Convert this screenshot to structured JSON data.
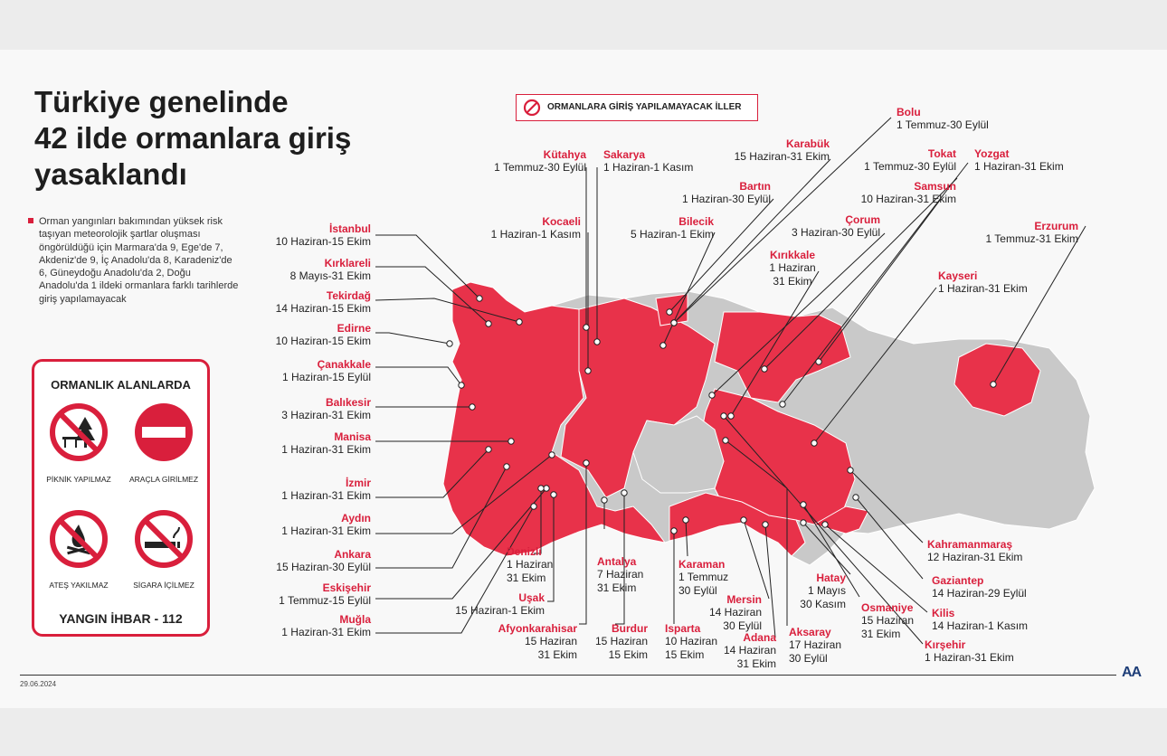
{
  "title_lines": [
    "Türkiye genelinde",
    "42 ilde ormanlara giriş",
    "yasaklandı"
  ],
  "description": "Orman yangınları bakımından yüksek risk taşıyan meteorolojik şartlar oluşması öngörüldüğü için Marmara'da 9, Ege'de 7, Akdeniz'de 9, İç Anadolu'da 8, Karadeniz'de 6, Güneydoğu Anadolu'da 2, Doğu Anadolu'da 1 ildeki ormanlara farklı tarihlerde giriş yapılamayacak",
  "rules": {
    "title": "ORMANLIK ALANLARDA",
    "items": [
      "PİKNİK YAPILMAZ",
      "ARAÇLA GİRİLMEZ",
      "ATEŞ YAKILMAZ",
      "SİGARA İÇİLMEZ"
    ],
    "hotline": "YANGIN İHBAR - 112"
  },
  "legend": {
    "label": "ORMANLARA GİRİŞ YAPILAMAYACAK İLLER",
    "icon": "no-entry-icon"
  },
  "colors": {
    "accent": "#d91f3c",
    "map_banned": "#e8324a",
    "map_other": "#c8c8c8"
  },
  "provinces": {
    "istanbul": {
      "name": "İstanbul",
      "dates": "10 Haziran-15 Ekim"
    },
    "kirklareli": {
      "name": "Kırklareli",
      "dates": "8 Mayıs-31 Ekim"
    },
    "tekirdag": {
      "name": "Tekirdağ",
      "dates": "14 Haziran-15 Ekim"
    },
    "edirne": {
      "name": "Edirne",
      "dates": "10 Haziran-15 Ekim"
    },
    "canakkale": {
      "name": "Çanakkale",
      "dates": "1 Haziran-15 Eylül"
    },
    "balikesir": {
      "name": "Balıkesir",
      "dates": "3 Haziran-31 Ekim"
    },
    "manisa": {
      "name": "Manisa",
      "dates": "1 Haziran-31 Ekim"
    },
    "izmir": {
      "name": "İzmir",
      "dates": "1 Haziran-31 Ekim"
    },
    "aydin": {
      "name": "Aydın",
      "dates": "1 Haziran-31 Ekim"
    },
    "ankara": {
      "name": "Ankara",
      "dates": "15 Haziran-30 Eylül"
    },
    "eskisehir": {
      "name": "Eskişehir",
      "dates": "1 Temmuz-15 Eylül"
    },
    "mugla": {
      "name": "Muğla",
      "dates": "1 Haziran-31 Ekim"
    },
    "kutahya": {
      "name": "Kütahya",
      "dates": "1 Temmuz-30 Eylül"
    },
    "sakarya": {
      "name": "Sakarya",
      "dates": "1 Haziran-1 Kasım"
    },
    "kocaeli": {
      "name": "Kocaeli",
      "dates": "1 Haziran-1 Kasım"
    },
    "bilecik": {
      "name": "Bilecik",
      "dates": "5 Haziran-1 Ekim"
    },
    "karabuk": {
      "name": "Karabük",
      "dates": "15 Haziran-31 Ekim"
    },
    "bartin": {
      "name": "Bartın",
      "dates": "1 Haziran-30 Eylül"
    },
    "bolu": {
      "name": "Bolu",
      "dates": "1 Temmuz-30 Eylül"
    },
    "tokat": {
      "name": "Tokat",
      "dates": "1 Temmuz-30 Eylül"
    },
    "yozgat": {
      "name": "Yozgat",
      "dates": "1 Haziran-31 Ekim"
    },
    "samsun": {
      "name": "Samsun",
      "dates": "10 Haziran-31 Ekim"
    },
    "corum": {
      "name": "Çorum",
      "dates": "3 Haziran-30 Eylül"
    },
    "kirikkale": {
      "name": "Kırıkkale",
      "dates": "1 Haziran\n31 Ekim"
    },
    "kayseri": {
      "name": "Kayseri",
      "dates": "1 Haziran-31 Ekim"
    },
    "erzurum": {
      "name": "Erzurum",
      "dates": "1 Temmuz-31 Ekim"
    },
    "denizli": {
      "name": "Denizli",
      "dates": "1 Haziran\n31 Ekim"
    },
    "usak": {
      "name": "Uşak",
      "dates": "15 Haziran-1 Ekim"
    },
    "afyon": {
      "name": "Afyonkarahisar",
      "dates": "15 Haziran\n31 Ekim"
    },
    "antalya": {
      "name": "Antalya",
      "dates": "7 Haziran\n31 Ekim"
    },
    "burdur": {
      "name": "Burdur",
      "dates": "15 Haziran\n15 Ekim"
    },
    "isparta": {
      "name": "Isparta",
      "dates": "10 Haziran\n15 Ekim"
    },
    "karaman": {
      "name": "Karaman",
      "dates": "1 Temmuz\n30 Eylül"
    },
    "mersin": {
      "name": "Mersin",
      "dates": "14 Haziran\n30 Eylül"
    },
    "adana": {
      "name": "Adana",
      "dates": "14 Haziran\n31 Ekim"
    },
    "aksaray": {
      "name": "Aksaray",
      "dates": "17 Haziran\n30 Eylül"
    },
    "hatay": {
      "name": "Hatay",
      "dates": "1 Mayıs\n30 Kasım"
    },
    "osmaniye": {
      "name": "Osmaniye",
      "dates": "15 Haziran\n31 Ekim"
    },
    "kahramanmaras": {
      "name": "Kahramanmaraş",
      "dates": "12 Haziran-31 Ekim"
    },
    "gaziantep": {
      "name": "Gaziantep",
      "dates": "14 Haziran-29 Eylül"
    },
    "kilis": {
      "name": "Kilis",
      "dates": "14 Haziran-1 Kasım"
    },
    "kirsehir": {
      "name": "Kırşehir",
      "dates": "1 Haziran-31 Ekim"
    }
  },
  "footer": {
    "date": "29.06.2024",
    "logo": "AA"
  }
}
